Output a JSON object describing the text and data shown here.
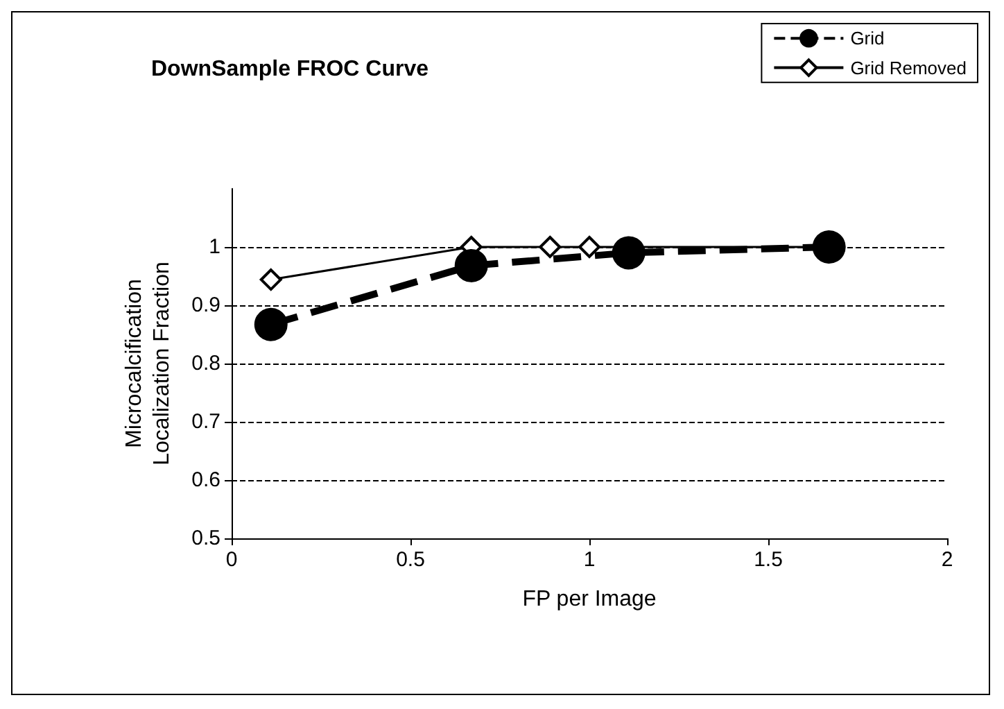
{
  "chart_data": {
    "type": "line",
    "title": "DownSample FROC Curve",
    "xlabel": "FP per Image",
    "ylabel": "Microcalcification\nLocalization Fraction",
    "series": [
      {
        "name": "Grid",
        "color": "#000000",
        "x": [
          0.11,
          0.67,
          1.11,
          1.67
        ],
        "values": [
          0.867,
          0.968,
          0.99,
          1.0
        ],
        "marker": "circle",
        "line_style": "dashed"
      },
      {
        "name": "Grid Removed",
        "color": "#000000",
        "x": [
          0.11,
          0.67,
          0.89,
          1.0,
          1.67
        ],
        "values": [
          0.944,
          1.0,
          1.0,
          1.0,
          1.0
        ],
        "marker": "diamond",
        "line_style": "solid"
      }
    ],
    "xlim": [
      0,
      2
    ],
    "xticks": [
      0,
      0.5,
      1,
      1.5,
      2
    ],
    "ylim": [
      0.5,
      1.1
    ],
    "yticks": [
      0.5,
      0.6,
      0.7,
      0.8,
      0.9,
      1
    ],
    "grid": "y",
    "legend": "top right"
  }
}
